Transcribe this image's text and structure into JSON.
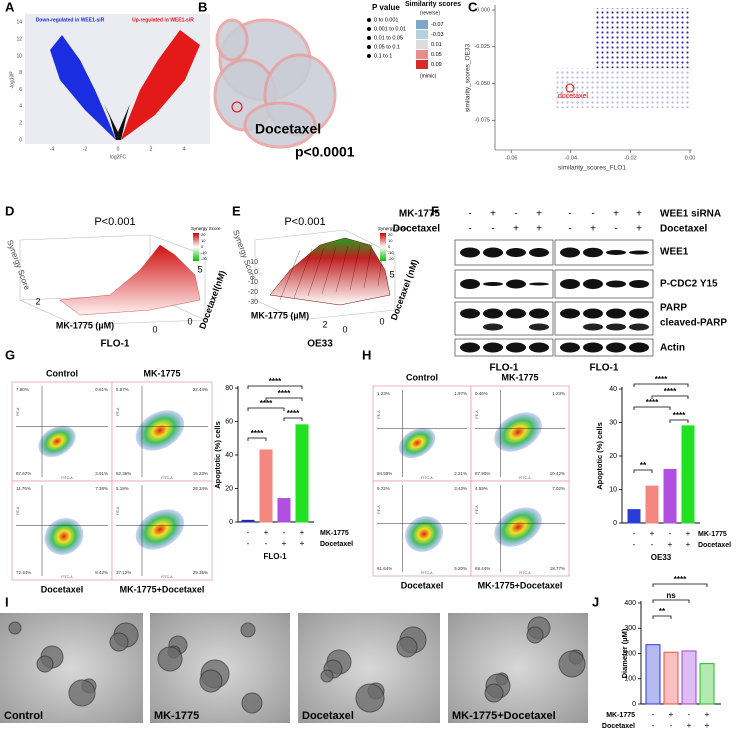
{
  "A": {
    "label": "A",
    "down": "Down-regulated in WEE1-siR",
    "up": "Up-regulated in WEE1-siR",
    "x_title": "log2FC",
    "y_title": "-log10P",
    "x_ticks": [
      -4,
      -2,
      0,
      2,
      4
    ],
    "y_ticks": [
      0,
      2,
      4,
      6,
      8,
      10,
      12,
      14
    ]
  },
  "B": {
    "label": "B",
    "p_title": "P value",
    "p_items": [
      "0 to 0.001",
      "0.001 to 0.01",
      "0.01 to 0.05",
      "0.05 to 0.1",
      "0.1 to 1"
    ],
    "s_title": "Similarity scores",
    "s_reverse": "(reverse)",
    "s_values": [
      -0.07,
      -0.03,
      0.01,
      0.05,
      0.09
    ],
    "s_colors": [
      "#7fa7c9",
      "#b8cfe0",
      "#dcdcdc",
      "#e98c8c",
      "#d42a2a"
    ],
    "s_mimic": "(mimic)",
    "drug": "Docetaxel",
    "p": "p<0.0001"
  },
  "C": {
    "label": "C",
    "x_title": "similarity_scores_FLO1",
    "y_title": "similarity_scores_OE33",
    "x_ticks": [
      -0.06,
      -0.04,
      -0.02,
      {
        "value": 0,
        "label": "0.00"
      }
    ],
    "y_ticks": [
      {
        "value": 0,
        "label": "0.000"
      },
      -0.025,
      {
        "value": -0.05,
        "label": "-0.050"
      },
      -0.075
    ],
    "highlight": "docetaxel"
  },
  "D": {
    "label": "D",
    "p": "P<0.001",
    "legend_title": "Synergy Score",
    "legend_ticks": [
      20,
      10,
      0,
      -10,
      -20
    ],
    "z_title": "Synergy Score",
    "x_title": "MK-1775 (µM)",
    "y_title": "Docetaxel(nM)",
    "x_ticks": [
      2,
      0
    ],
    "y_ticks": [
      5,
      0
    ],
    "caption": "FLO-1"
  },
  "E": {
    "label": "E",
    "p": "P<0.001",
    "legend_title": "Synergy Score",
    "legend_ticks": [
      20,
      10,
      0,
      -10,
      -20
    ],
    "z_title": "Synergy Score",
    "z_ticks": [
      10,
      0,
      -10,
      -20,
      -30
    ],
    "x_title": "MK-1775 (µM)",
    "y_title": "Docetaxel (nM)",
    "x_ticks": [
      2,
      0
    ],
    "y_ticks": [
      5,
      0
    ],
    "caption": "OE33"
  },
  "F": {
    "label": "F",
    "left_rows": [
      {
        "name": "MK-1775",
        "signs": [
          "-",
          "+",
          "-",
          "+"
        ]
      },
      {
        "name": "Docetaxel",
        "signs": [
          "-",
          "-",
          "+",
          "+"
        ]
      }
    ],
    "right_rows": [
      {
        "name": "WEE1 siRNA",
        "signs": [
          "-",
          "-",
          "+",
          "+"
        ]
      },
      {
        "name": "Docetaxel",
        "signs": [
          "-",
          "+",
          "-",
          "+"
        ]
      }
    ],
    "proteins": [
      "WEE1",
      "P-CDC2 Y15",
      "PARP",
      "cleaved-PARP",
      "Actin"
    ],
    "captions": [
      "FLO-1",
      "FLO-1"
    ]
  },
  "G": {
    "label": "G",
    "x_axis": "FITC-A",
    "y_axis": "PE-A",
    "plots": [
      {
        "title": "Control",
        "q": [
          "7.80%",
          "0.61%",
          "87.67%",
          "3.91%"
        ]
      },
      {
        "title": "MK-1775",
        "q": [
          "9.87%",
          "22.44%",
          "52.36%",
          "15.23%"
        ]
      },
      {
        "title": "Docetaxel",
        "q": [
          "11.76%",
          "7.38%",
          "72.44%",
          "8.42%"
        ]
      },
      {
        "title": "MK-1775+Docetaxel",
        "q": [
          "5.18%",
          "28.34%",
          "37.12%",
          "29.35%"
        ]
      }
    ],
    "chart": {
      "type": "bar",
      "y_title": "Apoptotic (%) cells",
      "values": [
        1,
        43,
        14,
        58
      ],
      "colors": [
        "#1f2fa8",
        "#f4877f",
        "#b04fe0",
        "#22e022"
      ],
      "ylim": [
        0,
        80
      ],
      "yticks": [
        0,
        20,
        40,
        60,
        80
      ],
      "rows": [
        {
          "name": "MK-1775",
          "signs": [
            "-",
            "+",
            "-",
            "+"
          ]
        },
        {
          "name": "Docetaxel",
          "signs": [
            "-",
            "-",
            "+",
            "+"
          ]
        }
      ],
      "sig": [
        "****",
        "****",
        "****",
        "****",
        "****"
      ],
      "cell_line": "FLO-1"
    }
  },
  "H": {
    "label": "H",
    "x_axis": "FITC-A",
    "y_axis": "PE-A",
    "plots": [
      {
        "title": "Control",
        "q": [
          "1.23%",
          "1.97%",
          "94.59%",
          "2.21%"
        ]
      },
      {
        "title": "MK-1775",
        "q": [
          "0.46%",
          "1.23%",
          "87.90%",
          "10.42%"
        ]
      },
      {
        "title": "Docetaxel",
        "q": [
          "9.72%",
          "3.43%",
          "81.64%",
          "5.20%"
        ]
      },
      {
        "title": "MK-1775+Docetaxel",
        "q": [
          "4.59%",
          "7.02%",
          "69.44%",
          "18.77%"
        ]
      }
    ],
    "chart": {
      "type": "bar",
      "y_title": "Apoptotic (%) cells",
      "values": [
        4,
        11,
        16,
        29
      ],
      "colors": [
        "#2a3dd6",
        "#f4877f",
        "#b04fe0",
        "#22e022"
      ],
      "ylim": [
        0,
        40
      ],
      "yticks": [
        0,
        10,
        20,
        30,
        40
      ],
      "rows": [
        {
          "name": "MK-1775",
          "signs": [
            "-",
            "+",
            "-",
            "+"
          ]
        },
        {
          "name": "Docetaxel",
          "signs": [
            "-",
            "-",
            "+",
            "+"
          ]
        }
      ],
      "sig": [
        "**",
        "****",
        "****",
        "****",
        "****"
      ],
      "cell_line": "OE33"
    }
  },
  "I": {
    "label": "I",
    "captions": [
      "Control",
      "MK-1775",
      "Docetaxel",
      "MK-1775+Docetaxel"
    ]
  },
  "J": {
    "label": "J",
    "chart": {
      "type": "bar",
      "y_title": "Diameter (µM)",
      "values": [
        235,
        205,
        210,
        160
      ],
      "colors": [
        "#2a3dd6",
        "#f24b4b",
        "#a040e0",
        "#22c022"
      ],
      "ylim": [
        0,
        400
      ],
      "yticks": [
        0,
        100,
        200,
        300,
        400
      ],
      "rows": [
        {
          "name": "MK-1775",
          "signs": [
            "-",
            "+",
            "-",
            "+"
          ]
        },
        {
          "name": "Docetaxel",
          "signs": [
            "-",
            "-",
            "+",
            "+"
          ]
        }
      ],
      "sig": [
        "**",
        "ns",
        "****"
      ]
    }
  }
}
